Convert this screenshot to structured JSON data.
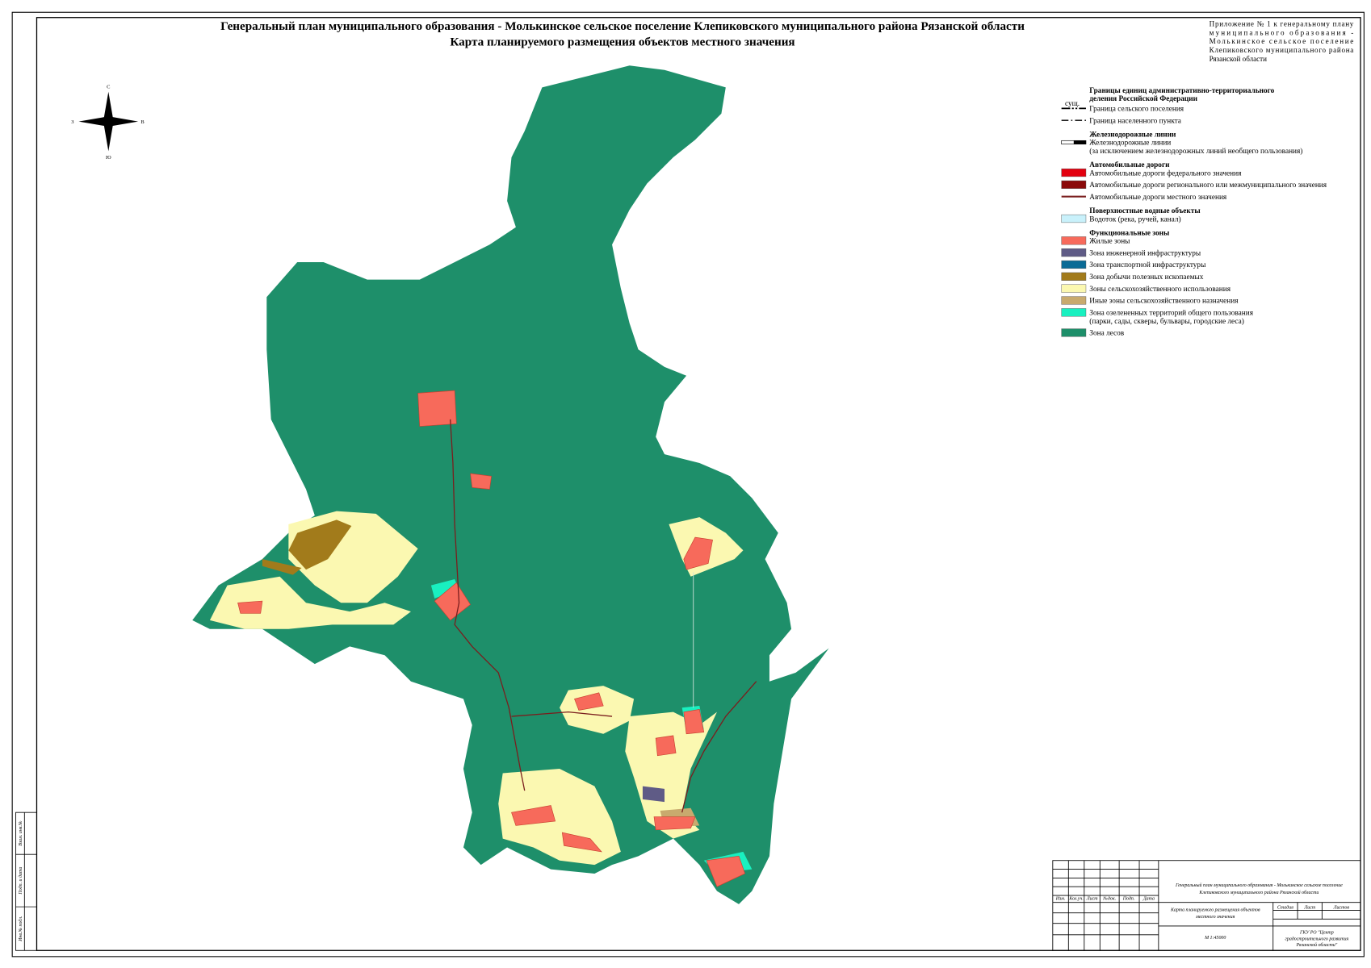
{
  "header": {
    "title_line1": "Генеральный план муниципального образования - Молькинское сельское поселение Клепиковского муниципального района Рязанской области",
    "title_line2": "Карта планируемого размещения объектов местного значения",
    "appendix": [
      "Приложение № 1 к генеральному плану",
      "муниципального образования -",
      "Молькинское сельское поселение",
      "Клепиковского муниципального района",
      "Рязанской области"
    ]
  },
  "compass": {
    "north": "С",
    "south": "Ю",
    "west": "З",
    "east": "В"
  },
  "legend": {
    "existing_label": "сущ.",
    "sections": [
      {
        "title": [
          "Границы единиц административно-территориального",
          "деления Российской Федерации"
        ],
        "items": [
          {
            "label": [
              "Граница сельского поселения"
            ],
            "kind": "dash-dot"
          },
          {
            "label": [
              "Граница населенного пункта"
            ],
            "kind": "dash-dots"
          }
        ]
      },
      {
        "title": [
          "Железнодорожные линии"
        ],
        "items": [
          {
            "label": [
              "Железнодорожные линии",
              "(за исключением железнодорожных линий необщего пользования)"
            ],
            "kind": "rail"
          }
        ]
      },
      {
        "title": [
          "Автомобильные дороги"
        ],
        "items": [
          {
            "label": [
              "Автомобильные дороги федерального значения"
            ],
            "kind": "rect",
            "color": "#e3000f"
          },
          {
            "label": [
              "Автомобильные дороги регионального или межмуниципального значения"
            ],
            "kind": "rect",
            "color": "#8b0a0a"
          },
          {
            "label": [
              "Автомобильные дороги местного значения"
            ],
            "kind": "line",
            "color": "#7a1e1e"
          }
        ]
      },
      {
        "title": [
          "Поверхностные водные объекты"
        ],
        "items": [
          {
            "label": [
              "Водоток (река, ручей, канал)"
            ],
            "kind": "rect",
            "color": "#c9f1fb"
          }
        ]
      },
      {
        "title": [
          "Функциональные зоны"
        ],
        "items": [
          {
            "label": [
              "Жилые зоны"
            ],
            "kind": "rect",
            "color": "#f76a5b"
          },
          {
            "label": [
              "Зона инженерной инфраструктуры"
            ],
            "kind": "rect",
            "color": "#5f5b86"
          },
          {
            "label": [
              "Зона транспортной инфраструктуры"
            ],
            "kind": "rect",
            "color": "#0a6b96"
          },
          {
            "label": [
              "Зона добычи полезных ископаемых"
            ],
            "kind": "rect",
            "color": "#a27b1b"
          },
          {
            "label": [
              "Зоны сельскохозяйственного использования"
            ],
            "kind": "rect",
            "color": "#fbf8b1"
          },
          {
            "label": [
              "Иные зоны сельскохозяйственного назначения"
            ],
            "kind": "rect",
            "color": "#c8aa6e"
          },
          {
            "label": [
              "Зона озелененных территорий общего пользования",
              "(парки, сады, скверы, бульвары, городские леса)"
            ],
            "kind": "rect",
            "color": "#19f0c0"
          },
          {
            "label": [
              "Зона лесов"
            ],
            "kind": "rect",
            "color": "#1e8f6a"
          }
        ]
      }
    ]
  },
  "title_block": {
    "project": [
      "Генеральный план муниципального образования - Молькинское сельское поселение",
      "Клепиковского муниципального района Рязанской области"
    ],
    "columns": [
      "Изм.",
      "Кол.уч.",
      "Лист",
      "№док.",
      "Подп.",
      "Дата"
    ],
    "sheet_name": [
      "Карта планируемого размещения объектов",
      "местного значения"
    ],
    "stage_headers": [
      "Стадия",
      "Лист",
      "Листов"
    ],
    "scale": "М 1:45000",
    "organization": [
      "ГКУ РО \"Центр",
      "градостроительного развития",
      "Рязанской области\""
    ]
  },
  "side_stamp": [
    "Инв.№ подл.",
    "Подп. и дата",
    "Взам. инв.№"
  ]
}
